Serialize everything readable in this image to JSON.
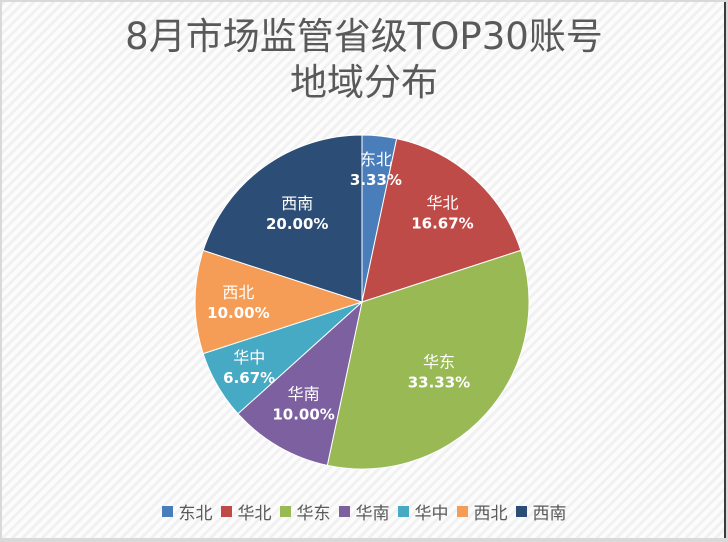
{
  "chart_data": {
    "type": "pie",
    "title": "8月市场监管省级TOP30账号地域分布",
    "title_lines": [
      "8月市场监管省级TOP30账号",
      "地域分布"
    ],
    "categories": [
      "东北",
      "华北",
      "华东",
      "华南",
      "华中",
      "西北",
      "西南"
    ],
    "values": [
      3.33,
      16.67,
      33.33,
      10.0,
      6.67,
      10.0,
      20.0
    ],
    "value_labels": [
      "3.33%",
      "16.67%",
      "33.33%",
      "10.00%",
      "6.67%",
      "10.00%",
      "20.00%"
    ],
    "colors": [
      "#4a7ebb",
      "#be4b48",
      "#98b954",
      "#7d60a0",
      "#46aac5",
      "#f59d56",
      "#2c4d75"
    ],
    "start_angle_deg": 0,
    "direction": "clockwise",
    "legend_position": "bottom",
    "unit": "%"
  },
  "legend": {
    "items": [
      {
        "label": "东北",
        "color": "#4a7ebb"
      },
      {
        "label": "华北",
        "color": "#be4b48"
      },
      {
        "label": "华东",
        "color": "#98b954"
      },
      {
        "label": "华南",
        "color": "#7d60a0"
      },
      {
        "label": "华中",
        "color": "#46aac5"
      },
      {
        "label": "西北",
        "color": "#f59d56"
      },
      {
        "label": "西南",
        "color": "#2c4d75"
      }
    ]
  }
}
